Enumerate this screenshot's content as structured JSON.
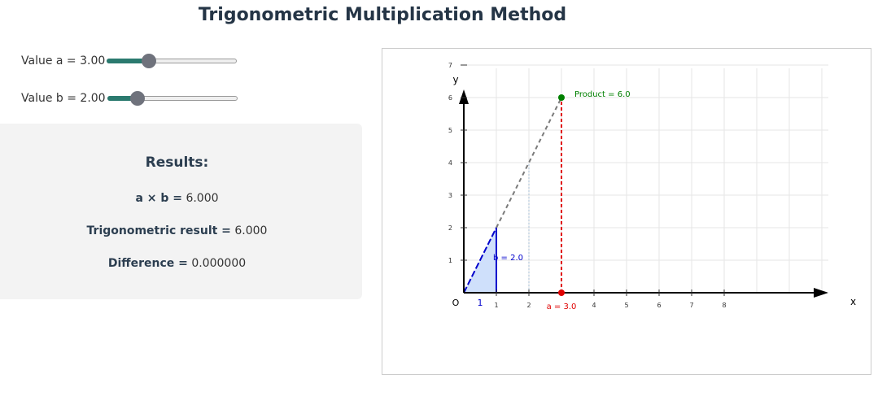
{
  "page": {
    "title": "Trigonometric Multiplication Method"
  },
  "controls": {
    "slider_a": {
      "label": "Value a = 3.00",
      "value": 3.0,
      "min": 0,
      "max": 10
    },
    "slider_b": {
      "label": "Value b = 2.00",
      "value": 2.0,
      "min": 0,
      "max": 10
    }
  },
  "results": {
    "heading": "Results:",
    "product_label": "a × b =",
    "product_value": "6.000",
    "trig_label": "Trigonometric result =",
    "trig_value": "6.000",
    "diff_label": "Difference =",
    "diff_value": "0.000000"
  },
  "chart_data": {
    "type": "scatter",
    "xlabel": "x",
    "ylabel": "y",
    "origin_label": "O",
    "xlim": [
      0,
      11
    ],
    "ylim": [
      0,
      7
    ],
    "x_ticks": [
      "1",
      "2",
      "3",
      "4",
      "5",
      "6",
      "7",
      "8"
    ],
    "y_ticks": [
      "1",
      "2",
      "3",
      "4",
      "5",
      "6",
      "7"
    ],
    "unit_label": "1",
    "b_label": "b = 2.0",
    "a_label": "a = 3.0",
    "product_label": "Product = 6.0",
    "a": 3.0,
    "b": 2.0,
    "product": 6.0,
    "grid": true,
    "colors": {
      "triangle_fill": "#cfe0fb",
      "triangle_stroke": "#0000cc",
      "a_point": "#e00000",
      "product_point": "#008000",
      "extension_line": "#7a7a7a",
      "grid": "#e6e6e6"
    }
  }
}
